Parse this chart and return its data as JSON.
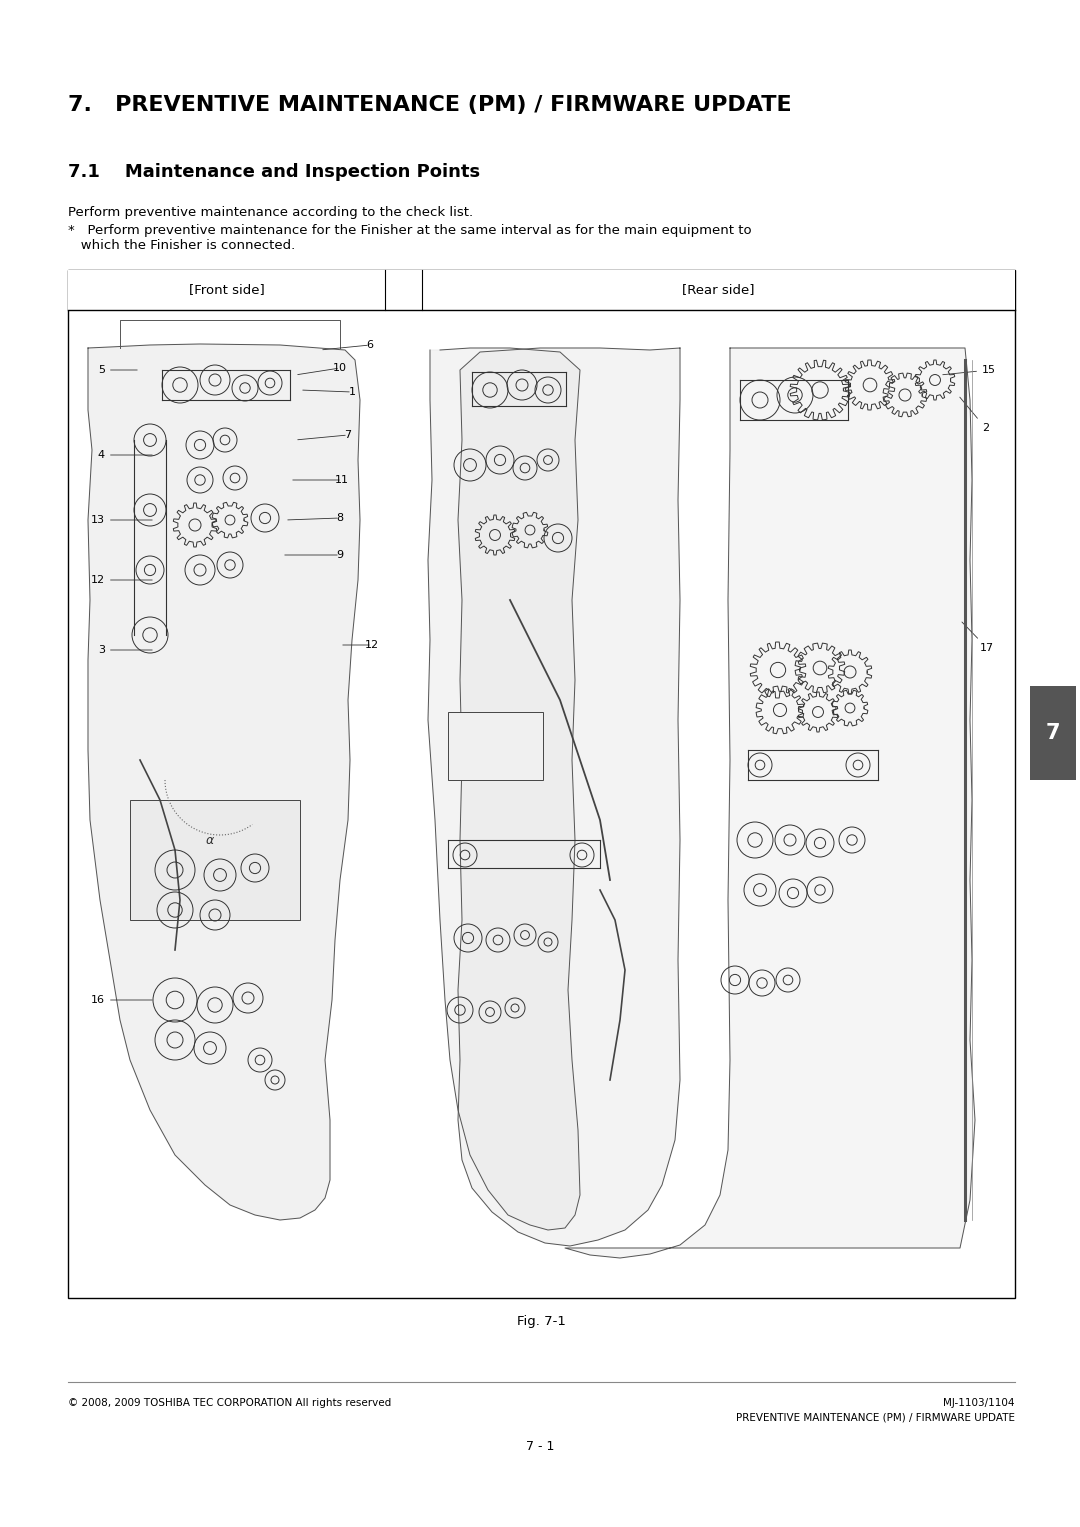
{
  "title_section": "7.   PREVENTIVE MAINTENANCE (PM) / FIRMWARE UPDATE",
  "subtitle": "7.1    Maintenance and Inspection Points",
  "para1": "Perform preventive maintenance according to the check list.",
  "para2_bullet": "*",
  "para2_text": "   Perform preventive maintenance for the Finisher at the same interval as for the main equipment to\n   which the Finisher is connected.",
  "col_left": "[Front side]",
  "col_right": "[Rear side]",
  "fig_caption": "Fig. 7-1",
  "page_number": "7 - 1",
  "footer_left": "© 2008, 2009 TOSHIBA TEC CORPORATION All rights reserved",
  "footer_right_line1": "MJ-1103/1104",
  "footer_right_line2": "PREVENTIVE MAINTENANCE (PM) / FIRMWARE UPDATE",
  "section_tab": "7",
  "bg_color": "#ffffff",
  "text_color": "#000000",
  "border_color": "#000000"
}
